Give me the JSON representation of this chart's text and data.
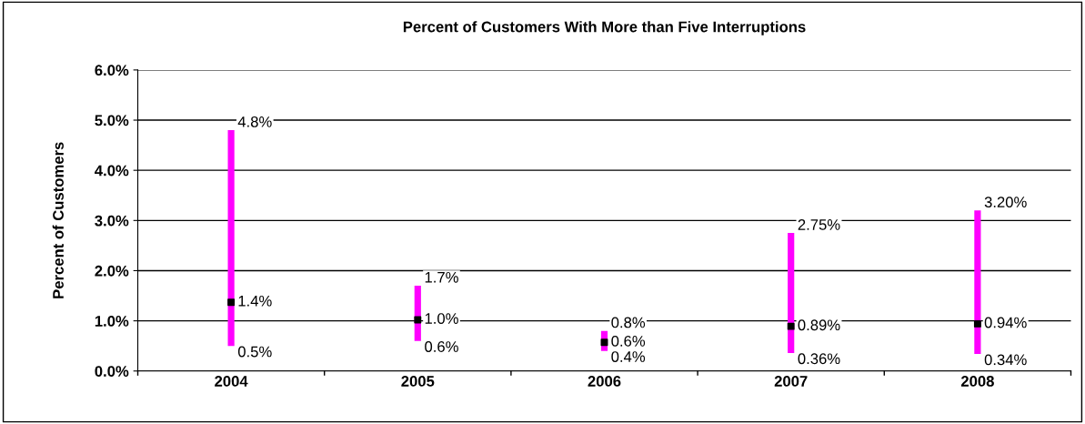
{
  "chart_data": {
    "type": "bar",
    "title": "Percent of Customers With More than Five Interruptions",
    "ylabel": "Percent of Customers",
    "categories": [
      "2004",
      "2005",
      "2006",
      "2007",
      "2008"
    ],
    "series": [
      {
        "type": "bar",
        "color": "#ff00ff",
        "base": [
          0.5,
          0.6,
          0.4,
          0.36,
          0.34
        ],
        "values": [
          4.3,
          1.1,
          0.4,
          2.39,
          2.86
        ]
      },
      {
        "type": "scatter",
        "color": "#000000",
        "marker": "square",
        "values": [
          1.37,
          1.02,
          0.57,
          0.89,
          0.94
        ],
        "value_labels": [
          "1.4%",
          "1.0%",
          "0.6%",
          "0.89%",
          "0.94%"
        ]
      }
    ],
    "annotations": [
      {
        "text": "4.8%",
        "x": "2004",
        "y": 4.8
      },
      {
        "text": "1.7%",
        "x": "2005",
        "y": 1.7
      },
      {
        "text": "0.8%",
        "x": "2006",
        "y": 0.8
      },
      {
        "text": "2.75%",
        "x": "2007",
        "y": 2.75
      },
      {
        "text": "3.20%",
        "x": "2008",
        "y": 3.2
      },
      {
        "text": "0.5%",
        "x": "2004",
        "y": 0.5
      },
      {
        "text": "0.6%",
        "x": "2005",
        "y": 0.6
      },
      {
        "text": "0.4%",
        "x": "2006",
        "y": 0.4
      },
      {
        "text": "0.36%",
        "x": "2007",
        "y": 0.36
      },
      {
        "text": "0.34%",
        "x": "2008",
        "y": 0.34
      }
    ],
    "ylim": [
      0,
      6
    ],
    "yticks": [
      {
        "value": 0,
        "label": "0.0%"
      },
      {
        "value": 1,
        "label": "1.0%"
      },
      {
        "value": 2,
        "label": "2.0%"
      },
      {
        "value": 3,
        "label": "3.0%"
      },
      {
        "value": 4,
        "label": "4.0%"
      },
      {
        "value": 5,
        "label": "5.0%"
      },
      {
        "value": 6,
        "label": "6.0%"
      }
    ],
    "grid": "y"
  }
}
